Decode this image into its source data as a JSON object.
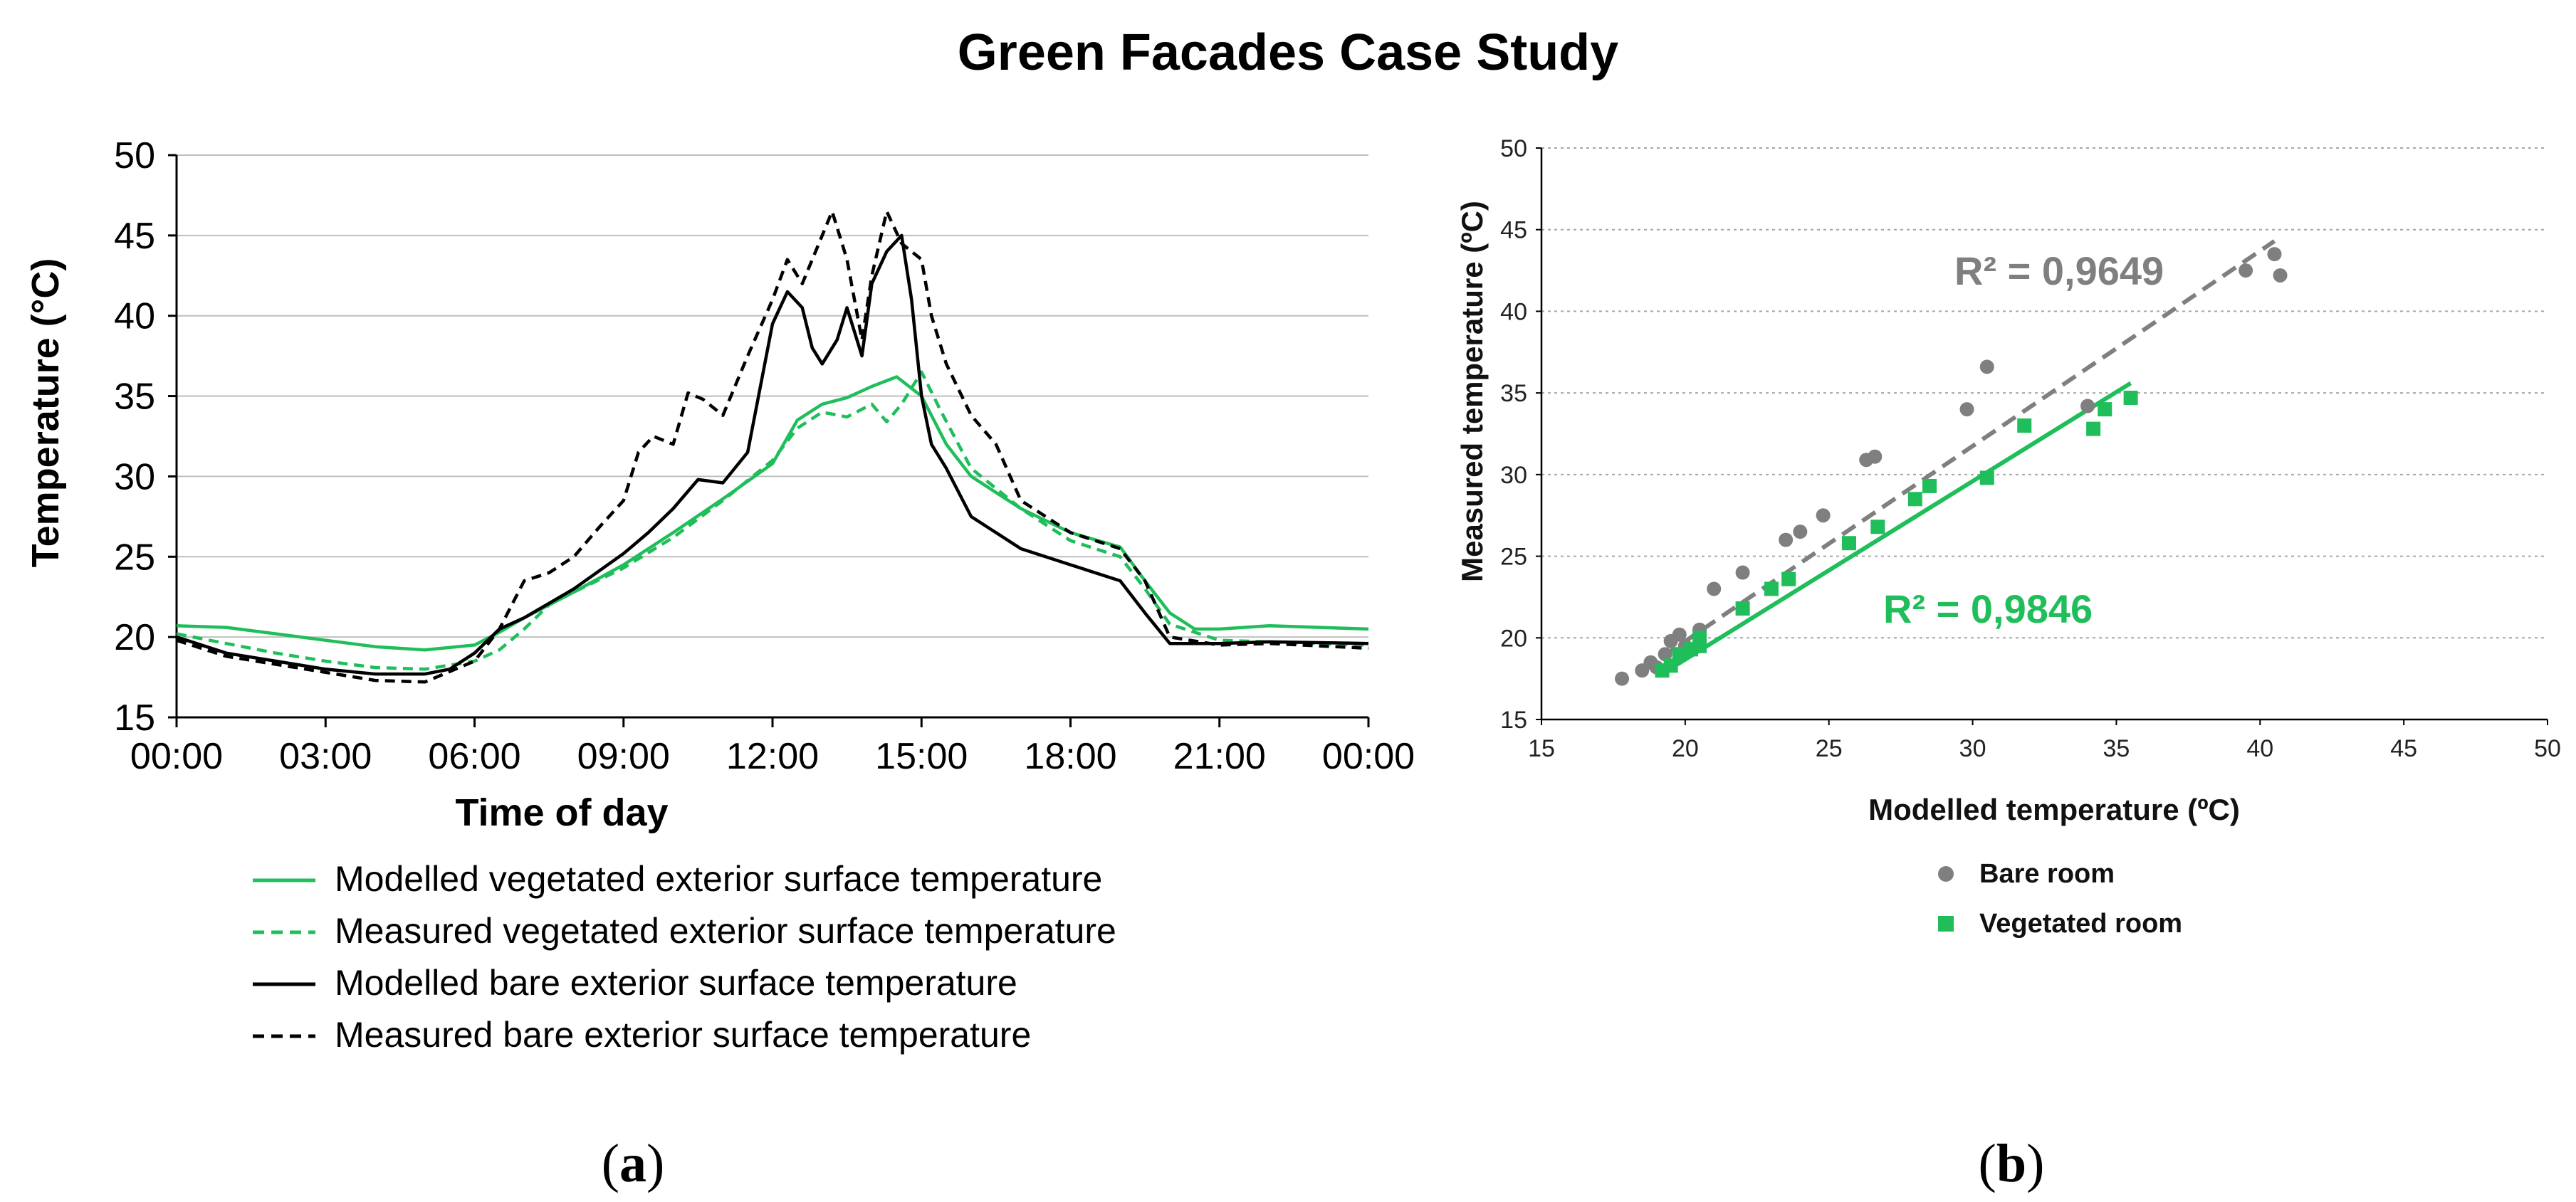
{
  "title": "Green Facades Case Study",
  "colors": {
    "green": "#1FBE5A",
    "black": "#000000",
    "grey": "#7F7F7F",
    "grid_a": "#BFBFBF",
    "grid_b": "#A6A6A6"
  },
  "chart_data": [
    {
      "type": "line",
      "panel_label": "a",
      "xlabel": "Time of day",
      "ylabel": "Temperature (°C)",
      "ylim": [
        15,
        50
      ],
      "yticks": [
        "15",
        "20",
        "25",
        "30",
        "35",
        "40",
        "45",
        "50"
      ],
      "xlim_hours": [
        0,
        24
      ],
      "xticks": [
        "00:00",
        "03:00",
        "06:00",
        "09:00",
        "12:00",
        "15:00",
        "18:00",
        "21:00",
        "00:00"
      ],
      "grid": true,
      "series": [
        {
          "name": "Modelled vegetated exterior surface temperature",
          "style": "solid",
          "color": "green",
          "points": [
            [
              0,
              20.7
            ],
            [
              1,
              20.6
            ],
            [
              2,
              20.2
            ],
            [
              3,
              19.8
            ],
            [
              4,
              19.4
            ],
            [
              5,
              19.2
            ],
            [
              6,
              19.5
            ],
            [
              6.5,
              20.3
            ],
            [
              7,
              21.2
            ],
            [
              8,
              22.8
            ],
            [
              9,
              24.5
            ],
            [
              10,
              26.5
            ],
            [
              11,
              28.6
            ],
            [
              12,
              30.8
            ],
            [
              12.5,
              33.5
            ],
            [
              13,
              34.5
            ],
            [
              13.5,
              34.9
            ],
            [
              14,
              35.6
            ],
            [
              14.5,
              36.2
            ],
            [
              15,
              35.0
            ],
            [
              15.5,
              32.0
            ],
            [
              16,
              30.0
            ],
            [
              17,
              28.0
            ],
            [
              18,
              26.5
            ],
            [
              19,
              25.6
            ],
            [
              19.5,
              23.5
            ],
            [
              20,
              21.5
            ],
            [
              20.5,
              20.5
            ],
            [
              21,
              20.5
            ],
            [
              22,
              20.7
            ],
            [
              24,
              20.5
            ]
          ]
        },
        {
          "name": "Measured vegetated exterior surface temperature",
          "style": "dashed",
          "color": "green",
          "points": [
            [
              0,
              20.2
            ],
            [
              1,
              19.6
            ],
            [
              2,
              19.0
            ],
            [
              3,
              18.5
            ],
            [
              4,
              18.1
            ],
            [
              5,
              18.0
            ],
            [
              6,
              18.5
            ],
            [
              6.5,
              19.2
            ],
            [
              7,
              20.5
            ],
            [
              7.5,
              22.0
            ],
            [
              8,
              22.8
            ],
            [
              9,
              24.3
            ],
            [
              10,
              26.2
            ],
            [
              11,
              28.5
            ],
            [
              12,
              31.0
            ],
            [
              12.5,
              33.0
            ],
            [
              13,
              34.0
            ],
            [
              13.5,
              33.7
            ],
            [
              14,
              34.5
            ],
            [
              14.3,
              33.4
            ],
            [
              14.6,
              34.5
            ],
            [
              15,
              36.5
            ],
            [
              15.4,
              34.0
            ],
            [
              16,
              30.5
            ],
            [
              17,
              28.0
            ],
            [
              18,
              26.0
            ],
            [
              19,
              25.0
            ],
            [
              19.5,
              23.0
            ],
            [
              20,
              20.8
            ],
            [
              21,
              19.8
            ],
            [
              24,
              19.5
            ]
          ]
        },
        {
          "name": "Modelled bare exterior surface temperature",
          "style": "solid",
          "color": "black",
          "points": [
            [
              0,
              20.0
            ],
            [
              1,
              19.0
            ],
            [
              2,
              18.5
            ],
            [
              3,
              18.0
            ],
            [
              4,
              17.7
            ],
            [
              5,
              17.7
            ],
            [
              5.5,
              18.0
            ],
            [
              6,
              19.0
            ],
            [
              6.5,
              20.5
            ],
            [
              7,
              21.2
            ],
            [
              8,
              23.0
            ],
            [
              9,
              25.2
            ],
            [
              9.5,
              26.5
            ],
            [
              10,
              28.0
            ],
            [
              10.5,
              29.8
            ],
            [
              11,
              29.6
            ],
            [
              11.5,
              31.5
            ],
            [
              12,
              39.5
            ],
            [
              12.3,
              41.5
            ],
            [
              12.6,
              40.5
            ],
            [
              12.8,
              38.0
            ],
            [
              13,
              37.0
            ],
            [
              13.3,
              38.5
            ],
            [
              13.5,
              40.5
            ],
            [
              13.8,
              37.5
            ],
            [
              14,
              42.0
            ],
            [
              14.3,
              44.0
            ],
            [
              14.6,
              45.0
            ],
            [
              14.8,
              41.0
            ],
            [
              15,
              35.0
            ],
            [
              15.2,
              32.0
            ],
            [
              15.5,
              30.5
            ],
            [
              16,
              27.5
            ],
            [
              17,
              25.5
            ],
            [
              18,
              24.5
            ],
            [
              19,
              23.5
            ],
            [
              19.5,
              21.5
            ],
            [
              20,
              19.6
            ],
            [
              21,
              19.6
            ],
            [
              22,
              19.7
            ],
            [
              24,
              19.6
            ]
          ]
        },
        {
          "name": "Measured bare exterior surface temperature",
          "style": "dashed",
          "color": "black",
          "points": [
            [
              0,
              19.8
            ],
            [
              1,
              18.8
            ],
            [
              2,
              18.3
            ],
            [
              3,
              17.8
            ],
            [
              4,
              17.3
            ],
            [
              5,
              17.2
            ],
            [
              6,
              18.5
            ],
            [
              6.5,
              20.5
            ],
            [
              7,
              23.5
            ],
            [
              7.5,
              24.0
            ],
            [
              8,
              25.0
            ],
            [
              8.5,
              26.8
            ],
            [
              9,
              28.5
            ],
            [
              9.3,
              31.5
            ],
            [
              9.6,
              32.5
            ],
            [
              10,
              32.0
            ],
            [
              10.3,
              35.2
            ],
            [
              10.6,
              34.8
            ],
            [
              11,
              33.8
            ],
            [
              11.5,
              37.5
            ],
            [
              12,
              41.0
            ],
            [
              12.3,
              43.5
            ],
            [
              12.6,
              42.0
            ],
            [
              13,
              45.0
            ],
            [
              13.2,
              46.5
            ],
            [
              13.5,
              43.5
            ],
            [
              13.8,
              38.5
            ],
            [
              14,
              42.5
            ],
            [
              14.3,
              46.5
            ],
            [
              14.6,
              44.5
            ],
            [
              15,
              43.5
            ],
            [
              15.2,
              40.0
            ],
            [
              15.5,
              37.0
            ],
            [
              16,
              33.8
            ],
            [
              16.5,
              32.0
            ],
            [
              17,
              28.5
            ],
            [
              18,
              26.5
            ],
            [
              19,
              25.5
            ],
            [
              19.5,
              23.5
            ],
            [
              20,
              20.0
            ],
            [
              21,
              19.5
            ],
            [
              22,
              19.6
            ],
            [
              24,
              19.3
            ]
          ]
        }
      ]
    },
    {
      "type": "scatter",
      "panel_label": "b",
      "xlabel": "Modelled temperature (ºC)",
      "ylabel": "Measured temperature (ºC)",
      "xlim": [
        15,
        50
      ],
      "ylim": [
        15,
        50
      ],
      "xticks": [
        "15",
        "20",
        "25",
        "30",
        "35",
        "40",
        "45",
        "50"
      ],
      "yticks": [
        "15",
        "20",
        "25",
        "30",
        "35",
        "40",
        "45",
        "50"
      ],
      "grid": true,
      "series": [
        {
          "name": "Bare room",
          "marker": "circle",
          "color": "grey",
          "points": [
            [
              17.8,
              17.5
            ],
            [
              18.5,
              18.0
            ],
            [
              18.8,
              18.5
            ],
            [
              19.0,
              18.2
            ],
            [
              19.3,
              19.0
            ],
            [
              19.5,
              19.8
            ],
            [
              19.8,
              20.2
            ],
            [
              20.0,
              19.5
            ],
            [
              20.5,
              20.5
            ],
            [
              21.0,
              23.0
            ],
            [
              22.0,
              24.0
            ],
            [
              23.5,
              26.0
            ],
            [
              24.0,
              26.5
            ],
            [
              24.8,
              27.5
            ],
            [
              26.3,
              30.9
            ],
            [
              26.6,
              31.1
            ],
            [
              29.8,
              34.0
            ],
            [
              30.5,
              36.6
            ],
            [
              34.0,
              34.2
            ],
            [
              39.5,
              42.5
            ],
            [
              40.5,
              43.5
            ],
            [
              40.7,
              42.2
            ]
          ],
          "r2_label": "R² = 0,9649",
          "trendline": [
            [
              18.5,
              18.0
            ],
            [
              40.5,
              44.3
            ]
          ]
        },
        {
          "name": "Vegetated room",
          "marker": "square",
          "color": "green",
          "points": [
            [
              19.2,
              18.0
            ],
            [
              19.5,
              18.3
            ],
            [
              19.8,
              19.0
            ],
            [
              20.2,
              19.3
            ],
            [
              20.5,
              19.5
            ],
            [
              20.5,
              20.0
            ],
            [
              22.0,
              21.8
            ],
            [
              23.0,
              23.0
            ],
            [
              23.6,
              23.6
            ],
            [
              25.7,
              25.8
            ],
            [
              26.7,
              26.8
            ],
            [
              28.0,
              28.5
            ],
            [
              28.5,
              29.3
            ],
            [
              30.5,
              29.8
            ],
            [
              31.8,
              33.0
            ],
            [
              34.2,
              32.8
            ],
            [
              34.6,
              34.0
            ],
            [
              35.5,
              34.7
            ]
          ],
          "r2_label": "R² = 0,9846",
          "trendline": [
            [
              19.2,
              17.8
            ],
            [
              35.5,
              35.6
            ]
          ]
        }
      ]
    }
  ]
}
